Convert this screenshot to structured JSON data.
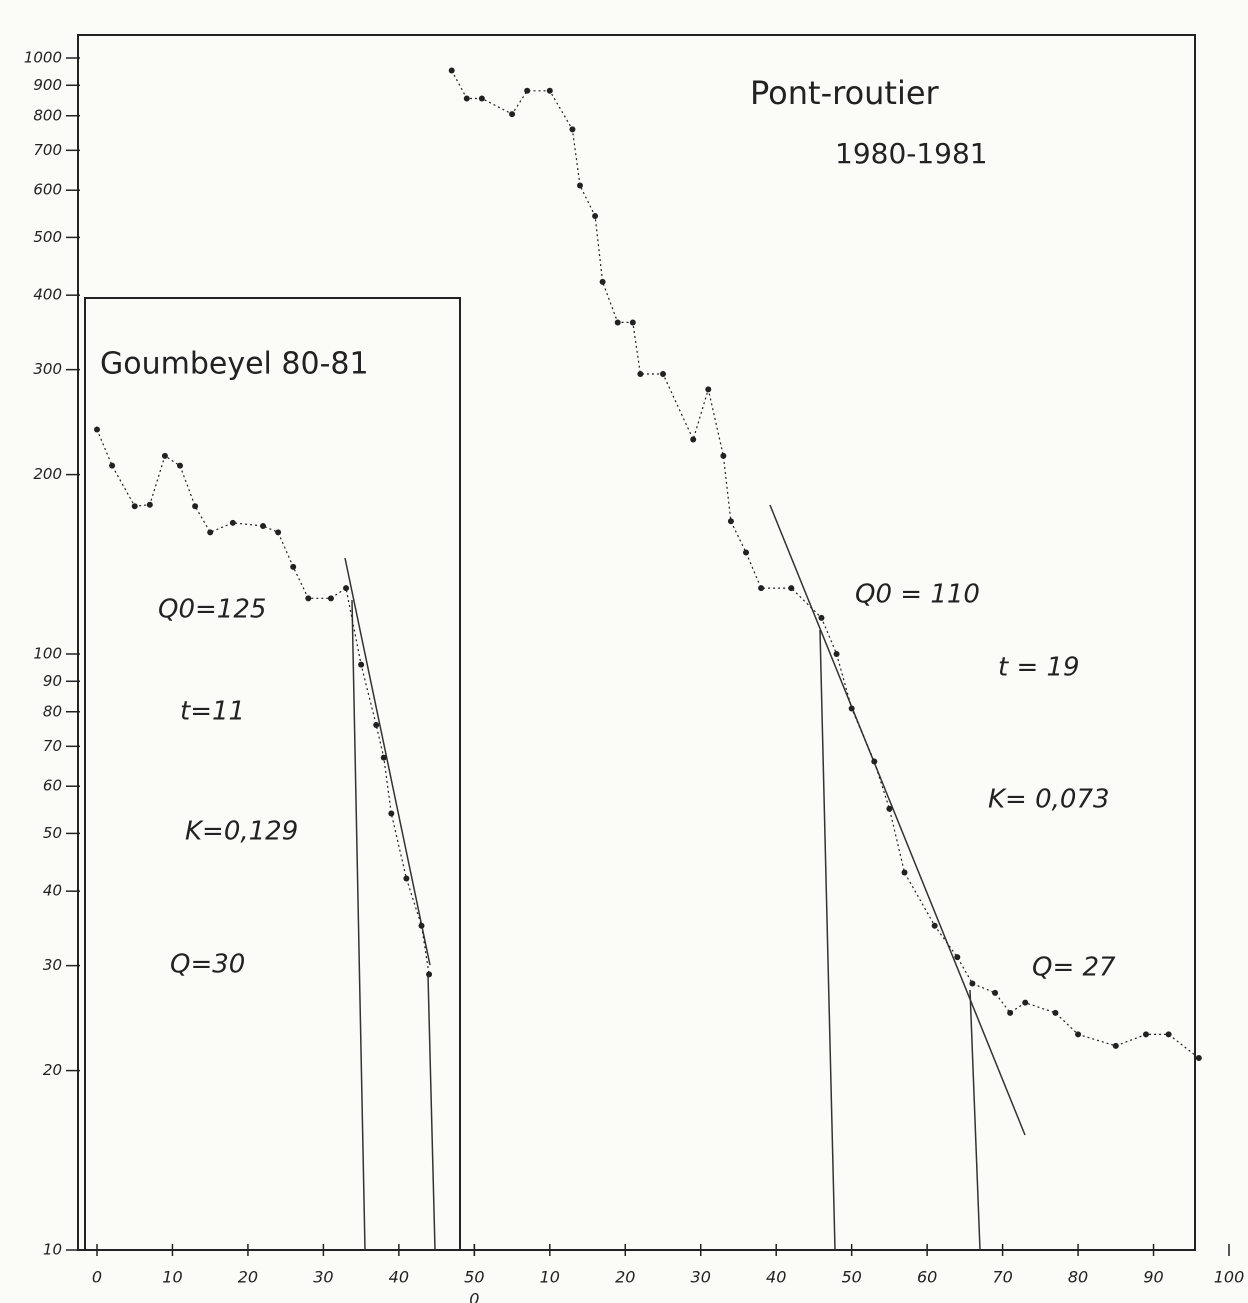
{
  "chart_data": {
    "type": "line",
    "title": "Pont-routier",
    "subtitle": "1980-1981",
    "annotations": [
      "Q0=125",
      "t=11",
      "K=0,129",
      "Q=30",
      "Q0 = 110",
      "t = 19",
      "K= 0,073",
      "Q= 27"
    ],
    "yscale": "log",
    "ylim": [
      10,
      1000
    ],
    "yticks": [
      10,
      20,
      30,
      40,
      50,
      60,
      70,
      80,
      90,
      100,
      200,
      300,
      400,
      500,
      600,
      700,
      800,
      900,
      1000
    ],
    "xlim": [
      0,
      150
    ],
    "xticks": [
      0,
      10,
      20,
      30,
      40,
      50,
      {
        "value": 50,
        "label": "0"
      },
      {
        "value": 60,
        "label": "10"
      },
      {
        "value": 70,
        "label": "20"
      },
      {
        "value": 80,
        "label": "30"
      },
      {
        "value": 90,
        "label": "40"
      },
      {
        "value": 100,
        "label": "50"
      },
      {
        "value": 110,
        "label": "60"
      },
      {
        "value": 120,
        "label": "70"
      },
      {
        "value": 130,
        "label": "80"
      },
      {
        "value": 140,
        "label": "90"
      },
      {
        "value": 150,
        "label": "100"
      }
    ],
    "markers": true,
    "series": [
      {
        "name": "Goumbeyel 80-81",
        "color": "#222222",
        "x": [
          0,
          2,
          5,
          7,
          9,
          11,
          13,
          15,
          18,
          22,
          24,
          26,
          28,
          31,
          33,
          35,
          37,
          38,
          39,
          41,
          43,
          44
        ],
        "values": [
          238,
          207,
          177,
          178,
          215,
          207,
          177,
          160,
          166,
          164,
          160,
          140,
          124,
          124,
          129,
          96,
          76,
          67,
          54,
          42,
          35,
          29
        ]
      },
      {
        "color": "#222222",
        "x": [
          47,
          49,
          51,
          55,
          57,
          60,
          63,
          64,
          66,
          67,
          69,
          71,
          72,
          75,
          79,
          81,
          83,
          84,
          86,
          88,
          92,
          96,
          98,
          100,
          103,
          105,
          107,
          111,
          114,
          116,
          119,
          121,
          123,
          127,
          130,
          135,
          139,
          142,
          146
        ],
        "values": [
          953,
          855,
          855,
          805,
          881,
          881,
          759,
          611,
          543,
          421,
          360,
          360,
          295,
          295,
          229,
          278,
          215,
          167,
          148,
          129,
          129,
          115,
          100,
          81,
          66,
          55,
          43,
          35,
          31,
          28,
          27,
          25,
          26,
          25,
          23,
          22,
          23,
          23,
          21
        ]
      }
    ]
  }
}
